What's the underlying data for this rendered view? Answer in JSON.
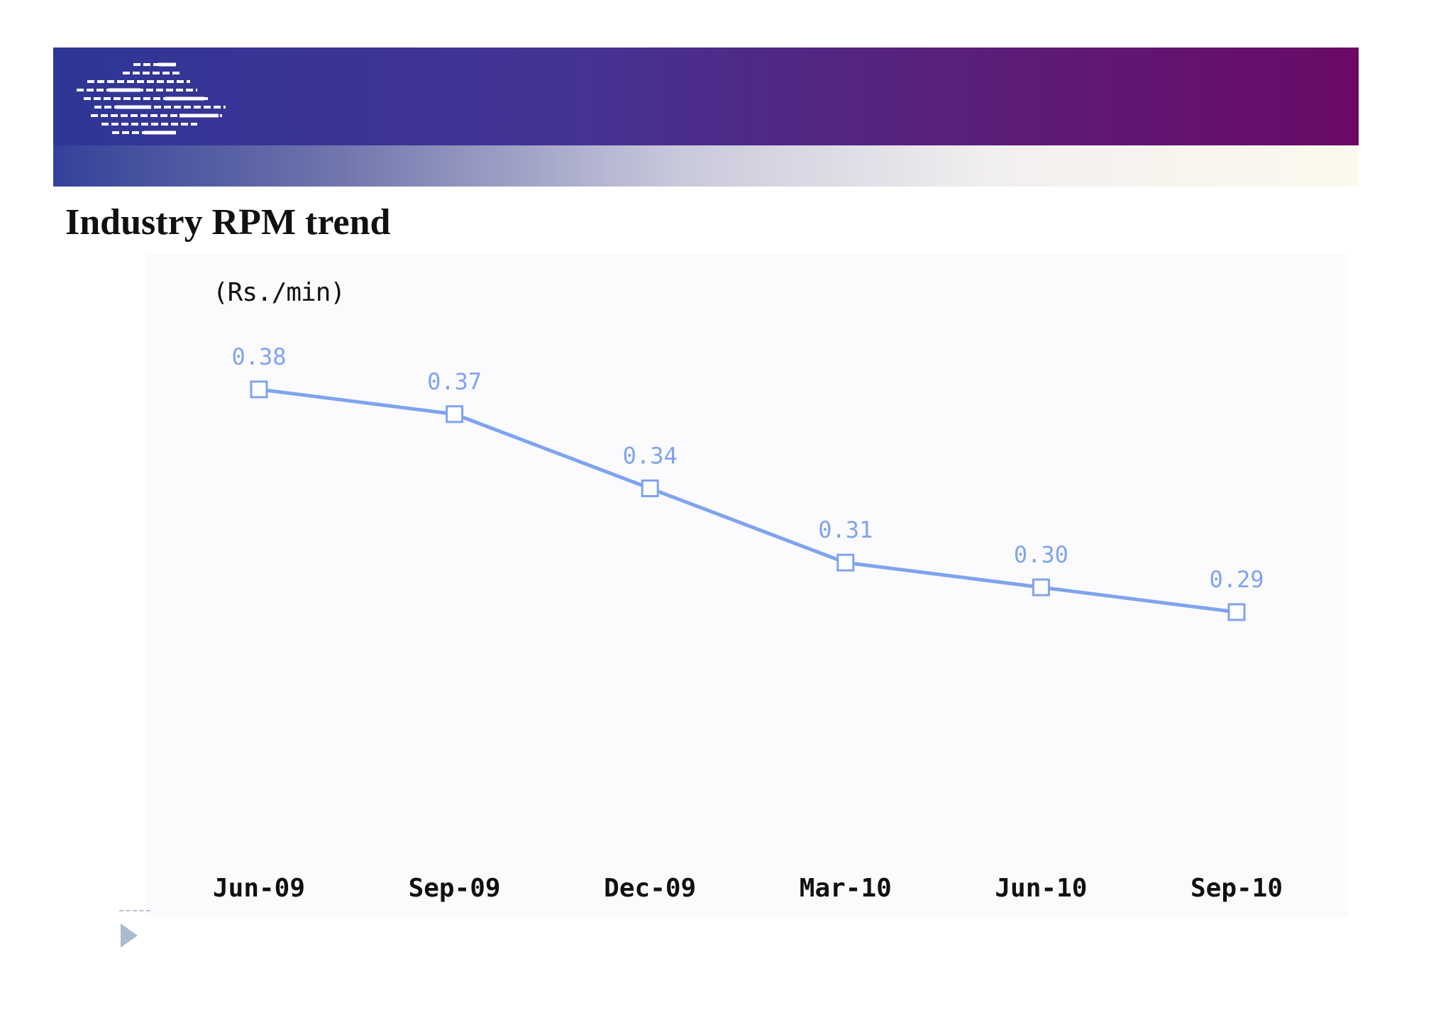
{
  "slide": {
    "title": "Industry RPM trend",
    "unit_label": "(Rs./min)"
  },
  "colors": {
    "banner_start": "#2f3696",
    "banner_end": "#6a0a66",
    "series": "#7fa3ee"
  },
  "icons": {
    "logo": "striped-logo-icon",
    "bullet": "triangle-bullet-icon"
  },
  "chart_data": {
    "type": "line",
    "title": "",
    "xlabel": "",
    "ylabel": "(Rs./min)",
    "categories": [
      "Jun-09",
      "Sep-09",
      "Dec-09",
      "Mar-10",
      "Jun-10",
      "Sep-10"
    ],
    "series": [
      {
        "values": [
          0.38,
          0.37,
          0.34,
          0.31,
          0.3,
          0.29
        ],
        "labels": [
          "0.38",
          "0.37",
          "0.34",
          "0.31",
          "0.30",
          "0.29"
        ],
        "marker": "hollow-square"
      }
    ],
    "ylim": [
      0.2,
      0.4
    ],
    "grid": false,
    "legend": "none"
  }
}
